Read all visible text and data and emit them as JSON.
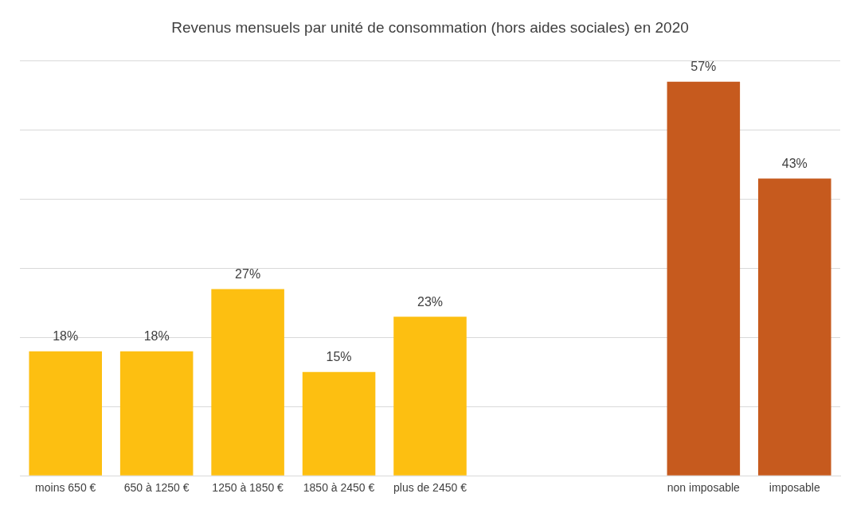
{
  "chart_data": {
    "type": "bar",
    "title": "Revenus mensuels par unité de consommation (hors aides sociales) en 2020",
    "categories": [
      "moins 650 €",
      "650 à 1250 €",
      "1250 à 1850 €",
      "1850 à 2450 €",
      "plus de 2450 €",
      null,
      null,
      "non imposable",
      "imposable"
    ],
    "values": [
      18,
      18,
      27,
      15,
      23,
      null,
      null,
      57,
      43
    ],
    "colors": [
      "#fdbf11",
      "#fdbf11",
      "#fdbf11",
      "#fdbf11",
      "#fdbf11",
      "#fdbf11",
      "#fdbf11",
      "#c65a1e",
      "#c65a1e"
    ],
    "value_labels": [
      "18%",
      "18%",
      "27%",
      "15%",
      "23%",
      null,
      null,
      "57%",
      "43%"
    ],
    "ylim": [
      0,
      60
    ],
    "yticks": [
      {
        "value": 0,
        "label": null
      },
      {
        "value": 10,
        "label": null
      },
      {
        "value": 20,
        "label": null
      },
      {
        "value": 30,
        "label": null
      },
      {
        "value": 40,
        "label": null
      },
      {
        "value": 50,
        "label": null
      },
      {
        "value": 60,
        "label": null
      }
    ],
    "grid": "y",
    "tick_labels": "x",
    "legend": false
  }
}
